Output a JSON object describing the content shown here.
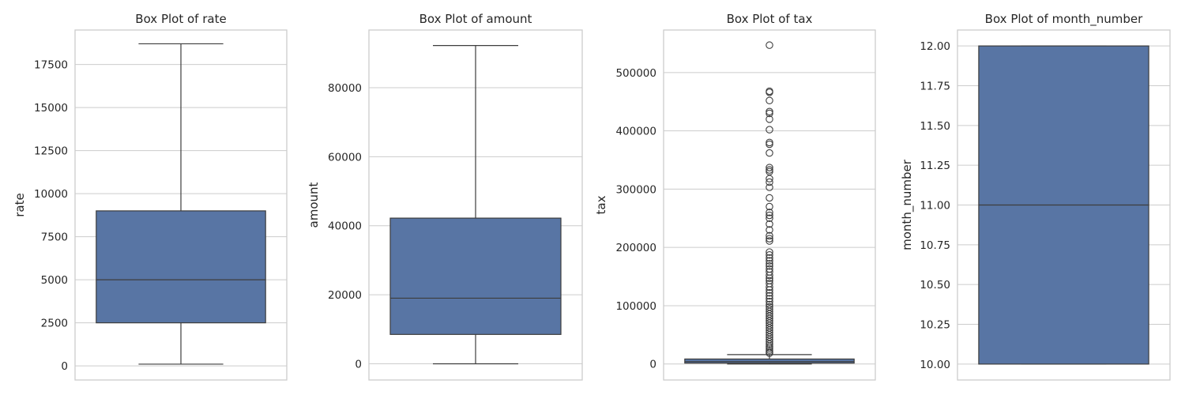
{
  "chart_data": [
    {
      "type": "box",
      "title": "Box Plot of rate",
      "xlabel": "",
      "ylabel": "rate",
      "ylim": [
        -820,
        19500
      ],
      "yticks": [
        0,
        2500,
        5000,
        7500,
        10000,
        12500,
        15000,
        17500
      ],
      "tick_labels": [
        "0",
        "2500",
        "5000",
        "7500",
        "10000",
        "12500",
        "15000",
        "17500"
      ],
      "grid": true,
      "box": {
        "whisker_low": 100,
        "q1": 2500,
        "median": 5000,
        "q3": 9000,
        "whisker_high": 18700
      },
      "outliers": []
    },
    {
      "type": "box",
      "title": "Box Plot of amount",
      "xlabel": "",
      "ylabel": "amount",
      "ylim": [
        -4700,
        96700
      ],
      "yticks": [
        0,
        20000,
        40000,
        60000,
        80000
      ],
      "tick_labels": [
        "0",
        "20000",
        "40000",
        "60000",
        "80000"
      ],
      "grid": true,
      "box": {
        "whisker_low": 0,
        "q1": 8500,
        "median": 19000,
        "q3": 42200,
        "whisker_high": 92200
      },
      "outliers": []
    },
    {
      "type": "box",
      "title": "Box Plot of tax",
      "xlabel": "",
      "ylabel": "tax",
      "ylim": [
        -27500,
        573000
      ],
      "yticks": [
        0,
        100000,
        200000,
        300000,
        400000,
        500000
      ],
      "tick_labels": [
        "0",
        "100000",
        "200000",
        "300000",
        "400000",
        "500000"
      ],
      "grid": true,
      "box": {
        "whisker_low": 0,
        "q1": 1500,
        "median": 4000,
        "q3": 8500,
        "whisker_high": 16000
      },
      "outliers": [
        547000,
        468000,
        466000,
        452000,
        433000,
        430000,
        420000,
        402000,
        380000,
        377000,
        362000,
        337000,
        333000,
        330000,
        318000,
        312000,
        303000,
        285000,
        270000,
        260000,
        255000,
        250000,
        240000,
        230000,
        220000,
        215000,
        211000,
        192000,
        187000,
        182000,
        177000,
        172000,
        168000,
        163000,
        158000,
        152000,
        147000,
        143000,
        138000,
        132000,
        127000,
        122000,
        117000,
        112000,
        107000,
        102000,
        98000,
        94000,
        90000,
        86000,
        82000,
        78000,
        74000,
        70000,
        66000,
        62000,
        58000,
        54000,
        50000,
        46000,
        42000,
        38000,
        34000,
        30000,
        27000,
        24000,
        21000,
        18500
      ]
    },
    {
      "type": "box",
      "title": "Box Plot of month_number",
      "xlabel": "",
      "ylabel": "month_number",
      "ylim": [
        9.9,
        12.1
      ],
      "yticks": [
        10.0,
        10.25,
        10.5,
        10.75,
        11.0,
        11.25,
        11.5,
        11.75,
        12.0
      ],
      "tick_labels": [
        "10.00",
        "10.25",
        "10.50",
        "10.75",
        "11.00",
        "11.25",
        "11.50",
        "11.75",
        "12.00"
      ],
      "grid": true,
      "box": {
        "whisker_low": 10.0,
        "q1": 10.0,
        "median": 11.0,
        "q3": 12.0,
        "whisker_high": 12.0
      },
      "outliers": []
    }
  ],
  "colors": {
    "box_fill": "#5875a4",
    "line": "#3d3d3d",
    "grid": "#cccccc",
    "frame": "#cccccc"
  }
}
